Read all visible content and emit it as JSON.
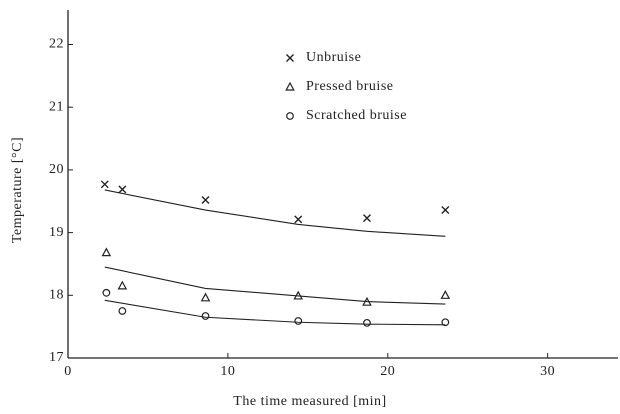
{
  "chart_data": {
    "type": "scatter",
    "xlabel": "The time measured [min]",
    "ylabel": "Temperature [°C]",
    "xlim": [
      0,
      34.4
    ],
    "xticks": [
      0,
      10,
      20,
      30
    ],
    "ylim": [
      17,
      22.55
    ],
    "yticks": [
      17,
      18,
      19,
      20,
      21,
      22
    ],
    "color": "#222222",
    "series": [
      {
        "name": "Unbruise",
        "marker": "x",
        "x": [
          2.3,
          3.4,
          8.6,
          14.4,
          18.7,
          23.6
        ],
        "values": [
          19.77,
          19.69,
          19.52,
          19.21,
          19.23,
          19.36
        ],
        "fit_x": [
          2.3,
          8.6,
          14.4,
          18.7,
          23.6
        ],
        "fit_values": [
          19.68,
          19.36,
          19.13,
          19.02,
          18.94
        ]
      },
      {
        "name": "Pressed bruise",
        "marker": "triangle",
        "x": [
          2.4,
          3.4,
          8.6,
          14.4,
          18.7,
          23.6
        ],
        "values": [
          18.68,
          18.15,
          17.96,
          17.99,
          17.89,
          18.0
        ],
        "fit_x": [
          2.3,
          8.6,
          14.4,
          18.7,
          23.6
        ],
        "fit_values": [
          18.45,
          18.11,
          17.99,
          17.9,
          17.86
        ]
      },
      {
        "name": "Scratched bruise",
        "marker": "circle",
        "x": [
          2.4,
          3.4,
          8.6,
          14.4,
          18.7,
          23.6
        ],
        "values": [
          18.04,
          17.75,
          17.67,
          17.59,
          17.56,
          17.57
        ],
        "fit_x": [
          2.3,
          8.6,
          14.4,
          18.7,
          23.6
        ],
        "fit_values": [
          17.92,
          17.65,
          17.57,
          17.54,
          17.53
        ]
      }
    ]
  }
}
